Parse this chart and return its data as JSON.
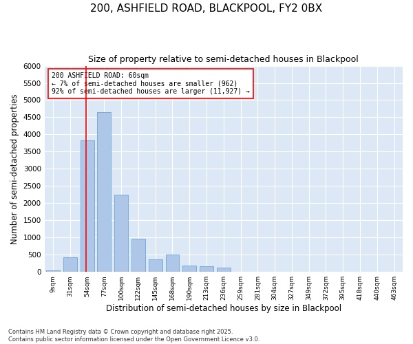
{
  "title1": "200, ASHFIELD ROAD, BLACKPOOL, FY2 0BX",
  "title2": "Size of property relative to semi-detached houses in Blackpool",
  "xlabel": "Distribution of semi-detached houses by size in Blackpool",
  "ylabel": "Number of semi-detached properties",
  "bar_labels": [
    "9sqm",
    "31sqm",
    "54sqm",
    "77sqm",
    "100sqm",
    "122sqm",
    "145sqm",
    "168sqm",
    "190sqm",
    "213sqm",
    "236sqm",
    "259sqm",
    "281sqm",
    "304sqm",
    "327sqm",
    "349sqm",
    "372sqm",
    "395sqm",
    "418sqm",
    "440sqm",
    "463sqm"
  ],
  "bar_heights": [
    50,
    430,
    3820,
    4640,
    2250,
    970,
    360,
    500,
    190,
    170,
    130,
    0,
    0,
    0,
    0,
    0,
    0,
    0,
    0,
    0,
    0
  ],
  "bar_color": "#aec6e8",
  "bar_edgecolor": "#5b9bd5",
  "background_color": "#dce8f5",
  "grid_color": "#ffffff",
  "annotation_text": "200 ASHFIELD ROAD: 60sqm\n← 7% of semi-detached houses are smaller (962)\n92% of semi-detached houses are larger (11,927) →",
  "ylim": [
    0,
    6000
  ],
  "yticks": [
    0,
    500,
    1000,
    1500,
    2000,
    2500,
    3000,
    3500,
    4000,
    4500,
    5000,
    5500,
    6000
  ],
  "footer": "Contains HM Land Registry data © Crown copyright and database right 2025.\nContains public sector information licensed under the Open Government Licence v3.0.",
  "fig_width": 6.0,
  "fig_height": 5.0,
  "dpi": 100
}
